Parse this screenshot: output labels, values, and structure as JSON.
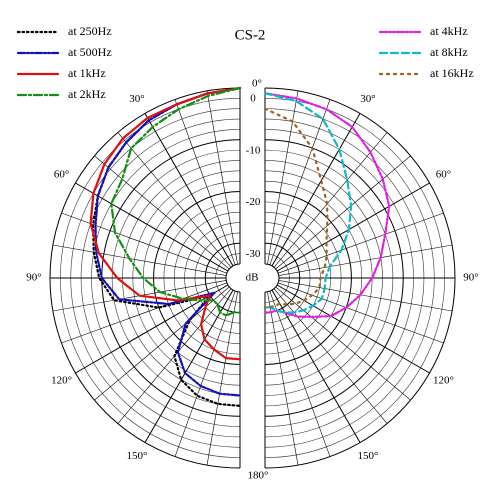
{
  "chart_data": {
    "type": "polar",
    "title": "CS-2",
    "rlim": [
      -34,
      0
    ],
    "rticks": [
      0,
      -10,
      -20,
      -30
    ],
    "rgrid": [
      -32,
      -28,
      -26,
      -24,
      -22,
      -18,
      -16,
      -14,
      -12,
      -8,
      -6,
      -4,
      -2
    ],
    "r_unit": "dB",
    "thetaticks": [
      {
        "value": 0,
        "label": "0°"
      },
      {
        "value": 30,
        "label": "30°"
      },
      {
        "value": 60,
        "label": "60°"
      },
      {
        "value": 90,
        "label": "90°"
      },
      {
        "value": 120,
        "label": "120°"
      },
      {
        "value": 150,
        "label": "150°"
      },
      {
        "value": 180,
        "label": "180°"
      }
    ],
    "thetagrid": [
      10,
      20,
      40,
      50,
      70,
      80,
      100,
      110,
      130,
      140,
      160,
      170
    ],
    "theta": [
      0,
      10,
      20,
      30,
      40,
      50,
      60,
      70,
      80,
      90,
      100,
      110,
      120,
      130,
      140,
      150,
      160,
      170,
      180
    ],
    "series": [
      {
        "name": "at 250Hz",
        "color": "#000000",
        "style": "dotted",
        "side": "left",
        "values": [
          0,
          -0.5,
          -1,
          -1.5,
          -2.5,
          -3.5,
          -5,
          -6.5,
          -8,
          -9.5,
          -12,
          -20,
          -30,
          -24,
          -17,
          -14,
          -12.5,
          -12,
          -12
        ]
      },
      {
        "name": "at 500Hz",
        "color": "#1010c0",
        "style": "dash-dot-dot",
        "side": "left",
        "values": [
          0,
          -0.5,
          -1,
          -1.5,
          -2.5,
          -3.5,
          -5,
          -7,
          -8.5,
          -10,
          -13,
          -22,
          -31,
          -23,
          -18,
          -15.5,
          -14.5,
          -14,
          -14
        ]
      },
      {
        "name": "at 1kHz",
        "color": "#e01010",
        "style": "solid",
        "side": "left",
        "values": [
          0,
          -0.5,
          -1,
          -1,
          -1.5,
          -2.5,
          -4,
          -6,
          -9,
          -13,
          -17,
          -24,
          -30,
          -28,
          -25,
          -23,
          -22,
          -21,
          -21
        ]
      },
      {
        "name": "at 2kHz",
        "color": "#109010",
        "style": "dash-dot",
        "side": "left",
        "values": [
          0,
          -1,
          -2,
          -3,
          -4,
          -7,
          -8,
          -11,
          -15,
          -18,
          -21,
          -25,
          -28,
          -30,
          -30,
          -29,
          -29,
          -30,
          -30
        ]
      },
      {
        "name": "at 4kHz",
        "color": "#e020e0",
        "style": "dash-dot-dot",
        "side": "right",
        "values": [
          -1,
          -1.5,
          -2,
          -3,
          -5,
          -7,
          -9,
          -12,
          -14,
          -16,
          -18,
          -20,
          -22,
          -25,
          -27,
          -29,
          -30,
          -30,
          -30
        ]
      },
      {
        "name": "at 8kHz",
        "color": "#10b8c8",
        "style": "dashed",
        "side": "right",
        "values": [
          -1,
          -2,
          -4,
          -8,
          -12,
          -15,
          -18,
          -21,
          -24,
          -25,
          -25,
          -25,
          -26,
          -27,
          -28,
          -29,
          -30,
          -31,
          -31
        ]
      },
      {
        "name": "at 16kHz",
        "color": "#a0601a",
        "style": "sparse-dotted",
        "side": "right",
        "values": [
          -4,
          -6,
          -10,
          -15,
          -18,
          -21,
          -23,
          -24,
          -25,
          -26,
          -26,
          -27,
          -28,
          -29,
          -30,
          -31,
          -31,
          -31,
          -31
        ]
      }
    ]
  }
}
